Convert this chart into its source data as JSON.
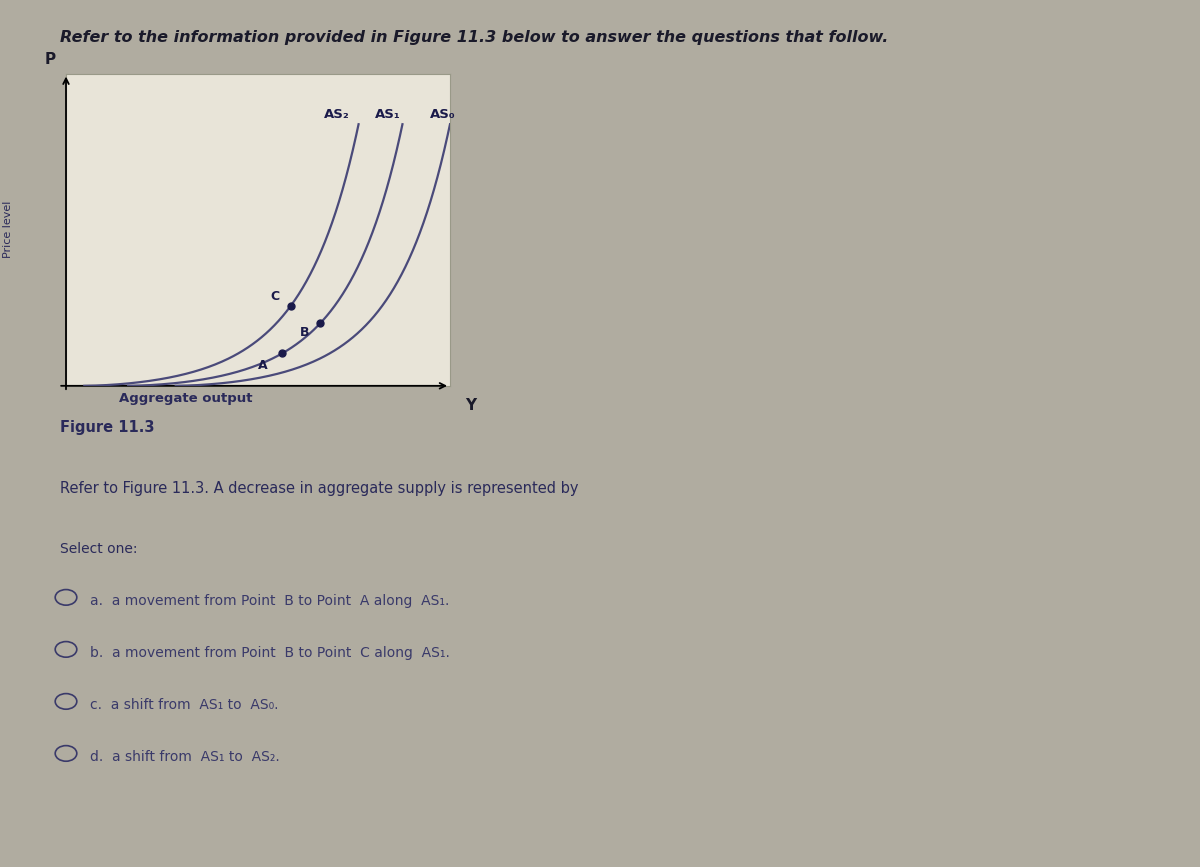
{
  "fig_bg_color": "#b0aca0",
  "plot_bg_color": "#e8e4d8",
  "header_text": "Refer to the information provided in Figure 11.3 below to answer the questions that follow.",
  "figure_label": "Figure 11.3",
  "question_text": "Refer to Figure 11.3. A decrease in aggregate supply is represented by",
  "select_one": "Select one:",
  "options": [
    "a.  a movement from Point  B to Point  A along  AS₁.",
    "b.  a movement from Point  B to Point  C along  AS₁.",
    "c.  a shift from  AS₁ to  AS₀.",
    "d.  a shift from  AS₁ to  AS₂."
  ],
  "xlabel": "Aggregate output",
  "ylabel": "Price level",
  "text_color": "#2a2a5a",
  "curve_color": "#4a4a7a",
  "point_color": "#1a1a4a",
  "curve_labels": [
    "AS₂",
    "AS₁",
    "AS₀"
  ],
  "header_color": "#1a1a2a",
  "option_text_color": "#3a3a6a"
}
